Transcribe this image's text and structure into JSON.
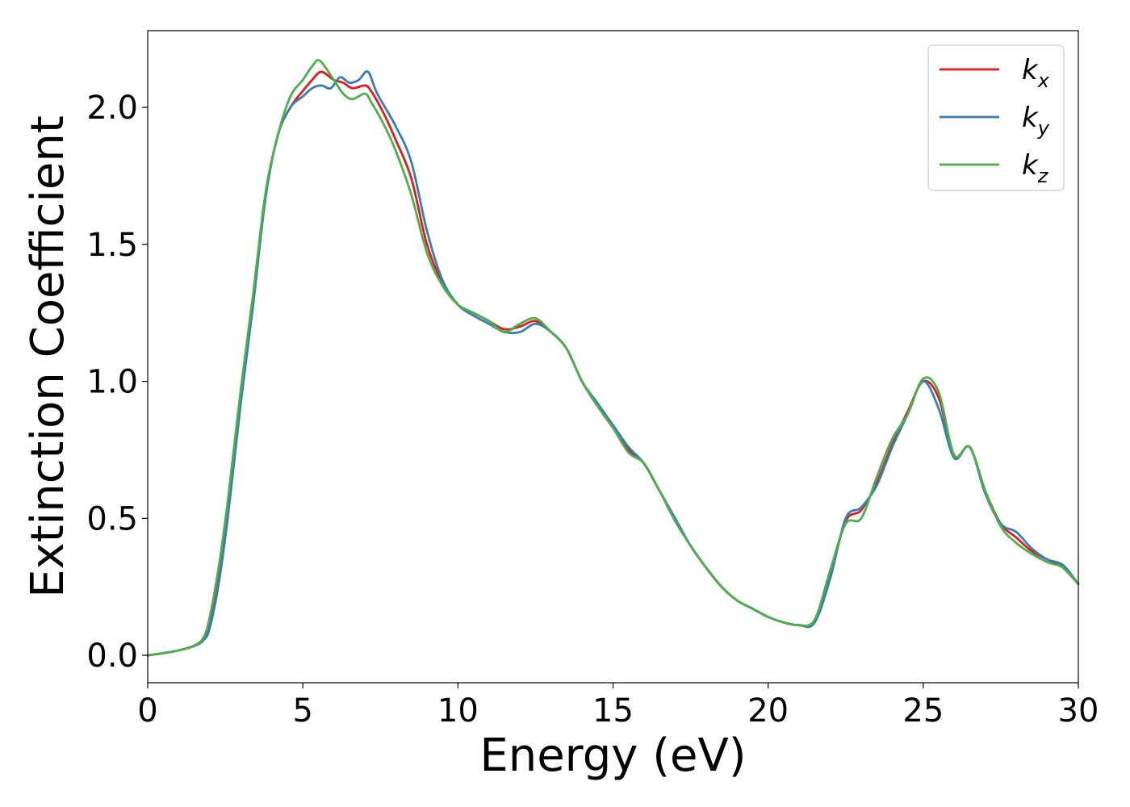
{
  "chart_data": {
    "type": "line",
    "title": "",
    "xlabel": "Energy (eV)",
    "ylabel": "Extinction Coefficient",
    "xlim": [
      0,
      30
    ],
    "ylim": [
      -0.1,
      2.28
    ],
    "xticks": [
      0,
      5,
      10,
      15,
      20,
      25,
      30
    ],
    "xtick_labels": [
      "0",
      "5",
      "10",
      "15",
      "20",
      "25",
      "30"
    ],
    "yticks": [
      0.0,
      0.5,
      1.0,
      1.5,
      2.0
    ],
    "ytick_labels": [
      "0.0",
      "0.5",
      "1.0",
      "1.5",
      "2.0"
    ],
    "grid": false,
    "legend": "top-right",
    "series": [
      {
        "name": "kx",
        "label_base": "k",
        "label_sub": "x",
        "color": "#e41a1c",
        "points": [
          [
            0,
            0
          ],
          [
            0.5,
            0.008
          ],
          [
            1,
            0.018
          ],
          [
            1.5,
            0.035
          ],
          [
            1.8,
            0.06
          ],
          [
            2,
            0.12
          ],
          [
            2.3,
            0.3
          ],
          [
            2.6,
            0.55
          ],
          [
            3,
            0.95
          ],
          [
            3.4,
            1.3
          ],
          [
            3.8,
            1.68
          ],
          [
            4.2,
            1.9
          ],
          [
            4.6,
            2.0
          ],
          [
            5,
            2.06
          ],
          [
            5.3,
            2.1
          ],
          [
            5.6,
            2.13
          ],
          [
            6,
            2.1
          ],
          [
            6.3,
            2.09
          ],
          [
            6.6,
            2.07
          ],
          [
            7,
            2.08
          ],
          [
            7.2,
            2.06
          ],
          [
            7.6,
            1.98
          ],
          [
            8,
            1.88
          ],
          [
            8.5,
            1.74
          ],
          [
            9,
            1.5
          ],
          [
            9.5,
            1.36
          ],
          [
            10,
            1.28
          ],
          [
            10.5,
            1.25
          ],
          [
            11,
            1.22
          ],
          [
            11.5,
            1.19
          ],
          [
            12,
            1.2
          ],
          [
            12.5,
            1.22
          ],
          [
            13,
            1.18
          ],
          [
            13.5,
            1.12
          ],
          [
            14,
            1.0
          ],
          [
            14.5,
            0.91
          ],
          [
            15,
            0.83
          ],
          [
            15.5,
            0.75
          ],
          [
            16,
            0.7
          ],
          [
            16.5,
            0.6
          ],
          [
            17,
            0.5
          ],
          [
            17.5,
            0.4
          ],
          [
            18,
            0.32
          ],
          [
            18.5,
            0.25
          ],
          [
            19,
            0.2
          ],
          [
            19.5,
            0.17
          ],
          [
            20,
            0.14
          ],
          [
            20.5,
            0.12
          ],
          [
            21,
            0.11
          ],
          [
            21.5,
            0.12
          ],
          [
            22,
            0.29
          ],
          [
            22.5,
            0.49
          ],
          [
            23,
            0.53
          ],
          [
            23.5,
            0.63
          ],
          [
            24,
            0.77
          ],
          [
            24.5,
            0.89
          ],
          [
            25,
            1.0
          ],
          [
            25.5,
            0.94
          ],
          [
            26,
            0.73
          ],
          [
            26.5,
            0.76
          ],
          [
            27,
            0.6
          ],
          [
            27.5,
            0.48
          ],
          [
            28,
            0.43
          ],
          [
            28.5,
            0.38
          ],
          [
            29,
            0.35
          ],
          [
            29.5,
            0.32
          ],
          [
            30,
            0.26
          ]
        ]
      },
      {
        "name": "ky",
        "label_base": "k",
        "label_sub": "y",
        "color": "#377eb8",
        "points": [
          [
            0,
            0
          ],
          [
            0.5,
            0.008
          ],
          [
            1,
            0.018
          ],
          [
            1.5,
            0.034
          ],
          [
            1.8,
            0.055
          ],
          [
            2,
            0.1
          ],
          [
            2.3,
            0.27
          ],
          [
            2.6,
            0.52
          ],
          [
            3,
            0.92
          ],
          [
            3.4,
            1.28
          ],
          [
            3.8,
            1.67
          ],
          [
            4.2,
            1.9
          ],
          [
            4.6,
            2.0
          ],
          [
            5,
            2.04
          ],
          [
            5.3,
            2.07
          ],
          [
            5.6,
            2.08
          ],
          [
            5.9,
            2.07
          ],
          [
            6.2,
            2.11
          ],
          [
            6.5,
            2.09
          ],
          [
            6.8,
            2.1
          ],
          [
            7.1,
            2.13
          ],
          [
            7.4,
            2.05
          ],
          [
            8,
            1.93
          ],
          [
            8.5,
            1.8
          ],
          [
            9,
            1.55
          ],
          [
            9.5,
            1.37
          ],
          [
            10,
            1.28
          ],
          [
            10.5,
            1.24
          ],
          [
            11,
            1.21
          ],
          [
            11.5,
            1.18
          ],
          [
            12,
            1.18
          ],
          [
            12.5,
            1.21
          ],
          [
            13,
            1.18
          ],
          [
            13.5,
            1.12
          ],
          [
            14,
            1.0
          ],
          [
            14.5,
            0.92
          ],
          [
            15,
            0.84
          ],
          [
            15.5,
            0.76
          ],
          [
            16,
            0.7
          ],
          [
            16.5,
            0.6
          ],
          [
            17,
            0.5
          ],
          [
            17.5,
            0.4
          ],
          [
            18,
            0.32
          ],
          [
            18.5,
            0.25
          ],
          [
            19,
            0.2
          ],
          [
            19.5,
            0.17
          ],
          [
            20,
            0.14
          ],
          [
            20.5,
            0.12
          ],
          [
            21,
            0.11
          ],
          [
            21.5,
            0.12
          ],
          [
            22,
            0.28
          ],
          [
            22.5,
            0.5
          ],
          [
            23,
            0.54
          ],
          [
            23.5,
            0.62
          ],
          [
            24,
            0.76
          ],
          [
            24.5,
            0.88
          ],
          [
            25,
            1.0
          ],
          [
            25.5,
            0.9
          ],
          [
            26,
            0.72
          ],
          [
            26.5,
            0.76
          ],
          [
            27,
            0.59
          ],
          [
            27.5,
            0.48
          ],
          [
            28,
            0.45
          ],
          [
            28.5,
            0.39
          ],
          [
            29,
            0.35
          ],
          [
            29.5,
            0.33
          ],
          [
            30,
            0.26
          ]
        ]
      },
      {
        "name": "kz",
        "label_base": "k",
        "label_sub": "z",
        "color": "#4daf4a",
        "points": [
          [
            0,
            0
          ],
          [
            0.5,
            0.008
          ],
          [
            1,
            0.018
          ],
          [
            1.5,
            0.036
          ],
          [
            1.8,
            0.065
          ],
          [
            2,
            0.14
          ],
          [
            2.3,
            0.33
          ],
          [
            2.6,
            0.58
          ],
          [
            3,
            0.97
          ],
          [
            3.4,
            1.32
          ],
          [
            3.8,
            1.69
          ],
          [
            4.2,
            1.9
          ],
          [
            4.6,
            2.04
          ],
          [
            5,
            2.1
          ],
          [
            5.3,
            2.15
          ],
          [
            5.55,
            2.17
          ],
          [
            6,
            2.1
          ],
          [
            6.3,
            2.05
          ],
          [
            6.6,
            2.03
          ],
          [
            7,
            2.05
          ],
          [
            7.2,
            2.02
          ],
          [
            7.6,
            1.94
          ],
          [
            8,
            1.84
          ],
          [
            8.5,
            1.68
          ],
          [
            9,
            1.47
          ],
          [
            9.5,
            1.35
          ],
          [
            10,
            1.28
          ],
          [
            10.5,
            1.25
          ],
          [
            11,
            1.22
          ],
          [
            11.5,
            1.18
          ],
          [
            12,
            1.21
          ],
          [
            12.5,
            1.23
          ],
          [
            13,
            1.18
          ],
          [
            13.5,
            1.12
          ],
          [
            14,
            1.0
          ],
          [
            14.5,
            0.91
          ],
          [
            15,
            0.83
          ],
          [
            15.5,
            0.74
          ],
          [
            16,
            0.7
          ],
          [
            16.5,
            0.6
          ],
          [
            17,
            0.49
          ],
          [
            17.5,
            0.4
          ],
          [
            18,
            0.32
          ],
          [
            18.5,
            0.25
          ],
          [
            19,
            0.2
          ],
          [
            19.5,
            0.17
          ],
          [
            20,
            0.14
          ],
          [
            20.5,
            0.12
          ],
          [
            21,
            0.11
          ],
          [
            21.5,
            0.13
          ],
          [
            22,
            0.31
          ],
          [
            22.5,
            0.48
          ],
          [
            23,
            0.5
          ],
          [
            23.5,
            0.65
          ],
          [
            24,
            0.79
          ],
          [
            24.5,
            0.88
          ],
          [
            25,
            1.01
          ],
          [
            25.5,
            0.96
          ],
          [
            26,
            0.73
          ],
          [
            26.5,
            0.76
          ],
          [
            27,
            0.6
          ],
          [
            27.5,
            0.47
          ],
          [
            28,
            0.41
          ],
          [
            28.5,
            0.37
          ],
          [
            29,
            0.34
          ],
          [
            29.5,
            0.32
          ],
          [
            30,
            0.26
          ]
        ]
      }
    ]
  }
}
